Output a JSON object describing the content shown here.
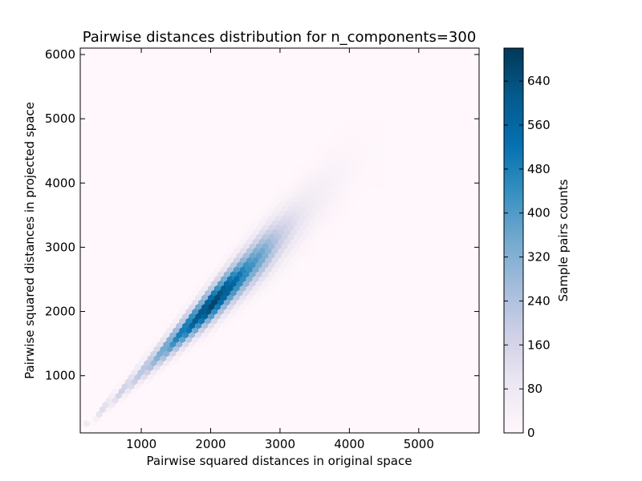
{
  "chart_data": {
    "type": "heatmap",
    "subtype": "hexbin",
    "title": "Pairwise distances distribution for n_components=300",
    "xlabel": "Pairwise squared distances in original space",
    "ylabel": "Pairwise squared distances in projected space",
    "xlim": [
      120,
      5870
    ],
    "ylim": [
      110,
      6100
    ],
    "x_ticks": [
      1000,
      2000,
      3000,
      4000,
      5000
    ],
    "y_ticks": [
      1000,
      2000,
      3000,
      4000,
      5000,
      6000
    ],
    "colorbar": {
      "label": "Sample pairs counts",
      "range": [
        0,
        700
      ],
      "ticks": [
        0,
        80,
        160,
        240,
        320,
        400,
        480,
        560,
        640
      ],
      "colors": [
        "#fff7fb",
        "#ece7f2",
        "#d0d1e6",
        "#a6bddb",
        "#74a9cf",
        "#3690c0",
        "#0570b0",
        "#045a8d",
        "#023858"
      ]
    },
    "density": {
      "peak_x": 2150,
      "peak_y": 2200,
      "peak_count": 700,
      "ridge": [
        {
          "x": 250,
          "y_center": 265,
          "y_spread": 20,
          "count": 80
        },
        {
          "x": 500,
          "y_center": 530,
          "y_spread": 45,
          "count": 140
        },
        {
          "x": 750,
          "y_center": 790,
          "y_spread": 65,
          "count": 180
        },
        {
          "x": 1000,
          "y_center": 1050,
          "y_spread": 90,
          "count": 220
        },
        {
          "x": 1250,
          "y_center": 1310,
          "y_spread": 110,
          "count": 330
        },
        {
          "x": 1500,
          "y_center": 1575,
          "y_spread": 130,
          "count": 470
        },
        {
          "x": 1750,
          "y_center": 1840,
          "y_spread": 150,
          "count": 590
        },
        {
          "x": 2000,
          "y_center": 2100,
          "y_spread": 170,
          "count": 680
        },
        {
          "x": 2250,
          "y_center": 2370,
          "y_spread": 190,
          "count": 610
        },
        {
          "x": 2500,
          "y_center": 2630,
          "y_spread": 215,
          "count": 470
        },
        {
          "x": 2750,
          "y_center": 2900,
          "y_spread": 240,
          "count": 360
        },
        {
          "x": 3000,
          "y_center": 3170,
          "y_spread": 265,
          "count": 200
        },
        {
          "x": 3250,
          "y_center": 3430,
          "y_spread": 290,
          "count": 110
        },
        {
          "x": 3500,
          "y_center": 3700,
          "y_spread": 315,
          "count": 60
        },
        {
          "x": 3750,
          "y_center": 3980,
          "y_spread": 340,
          "count": 35
        },
        {
          "x": 4000,
          "y_center": 4230,
          "y_spread": 360,
          "count": 18
        },
        {
          "x": 4250,
          "y_center": 4480,
          "y_spread": 380,
          "count": 8
        }
      ]
    }
  }
}
